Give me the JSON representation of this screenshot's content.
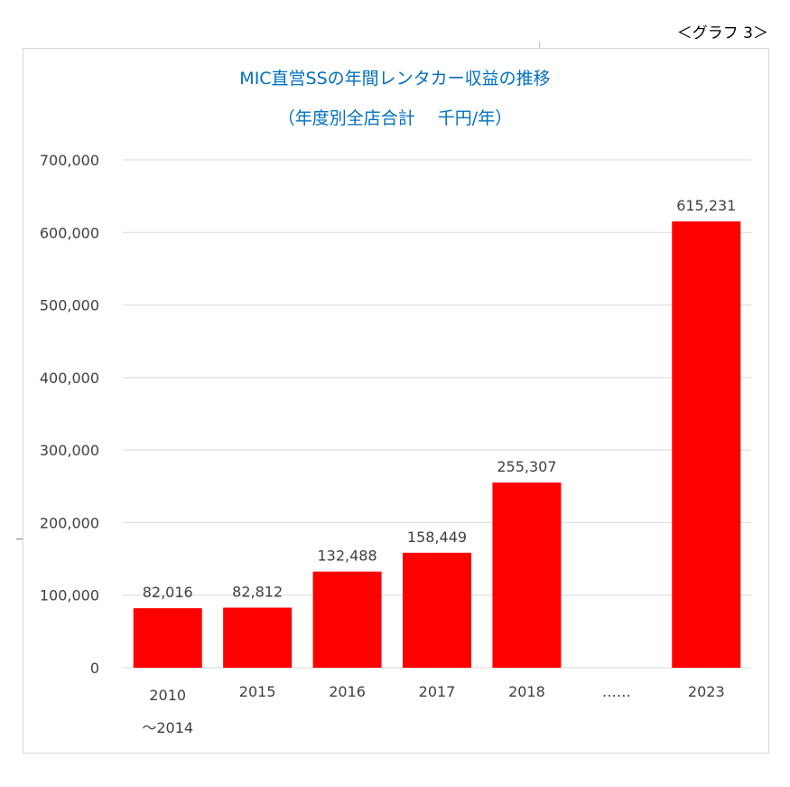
{
  "graph_label": "＜グラフ 3＞",
  "chart_data": {
    "type": "bar",
    "title": "MIC直営SSの年間レンタカー収益の推移",
    "subtitle": "（年度別全店合計　 千円/年）",
    "categories": [
      [
        "2010",
        "～2014"
      ],
      [
        "2015"
      ],
      [
        "2016"
      ],
      [
        "2017"
      ],
      [
        "2018"
      ],
      [
        "……"
      ],
      [
        "2023"
      ]
    ],
    "values": [
      82016,
      82812,
      132488,
      158449,
      255307,
      null,
      615231
    ],
    "data_labels": [
      "82,016",
      "82,812",
      "132,488",
      "158,449",
      "255,307",
      "",
      "615,231"
    ],
    "y_ticks": [
      "0",
      "100,000",
      "200,000",
      "300,000",
      "400,000",
      "500,000",
      "600,000",
      "700,000"
    ],
    "ylim": [
      0,
      700000
    ],
    "grid": true,
    "legend": "none",
    "bar_color": "#ff0000",
    "grid_color": "#d9d9d9",
    "text_color": "#404040",
    "title_color": "#0070c0"
  }
}
